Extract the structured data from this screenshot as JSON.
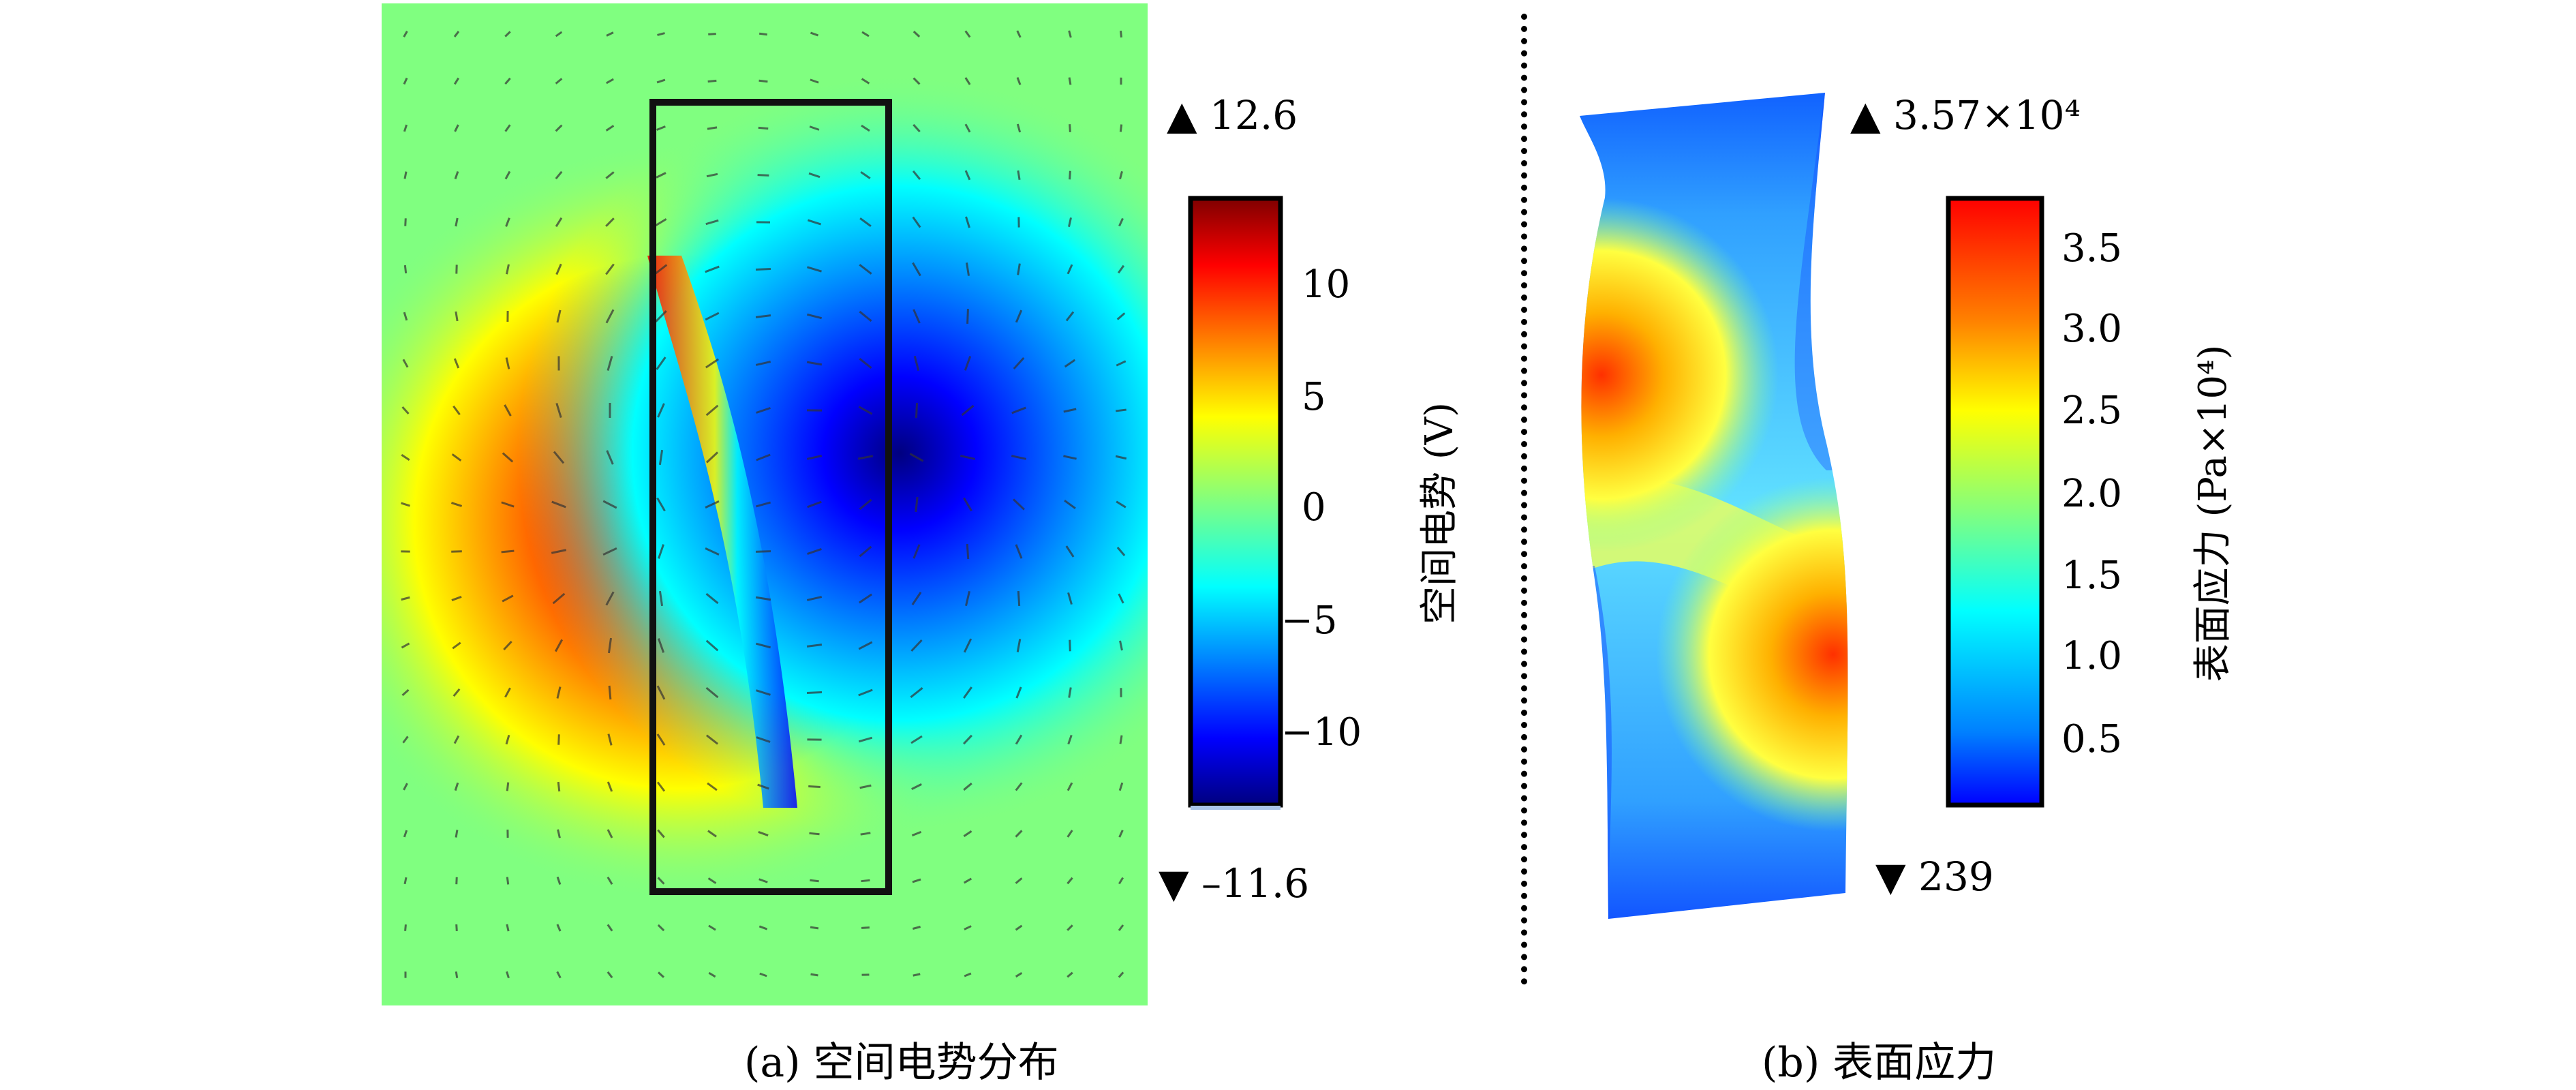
{
  "panel_a": {
    "caption": "(a) 空间电势分布",
    "max_marker": "▲",
    "max_value": "12.6",
    "min_marker": "▼",
    "min_value": "–11.6",
    "colorbar_label": "空间电势 (V)",
    "colorbar_ticks": [
      "10",
      "5",
      "0",
      "−5",
      "−10"
    ]
  },
  "panel_b": {
    "caption": "(b) 表面应力",
    "max_marker": "▲",
    "max_value": "3.57×10⁴",
    "min_marker": "▼",
    "min_value": "239",
    "colorbar_label": "表面应力 (Pa×10⁴)",
    "colorbar_ticks": [
      "3.5",
      "3.0",
      "2.5",
      "2.0",
      "1.5",
      "1.0",
      "0.5"
    ]
  },
  "colors": {
    "jet_dark_red": "#7f0000",
    "jet_red": "#ff0000",
    "jet_yellow": "#ffff00",
    "jet_green": "#80ff80",
    "jet_cyan": "#00ffff",
    "jet_blue": "#0000ff",
    "jet_dark_blue": "#00007f"
  }
}
